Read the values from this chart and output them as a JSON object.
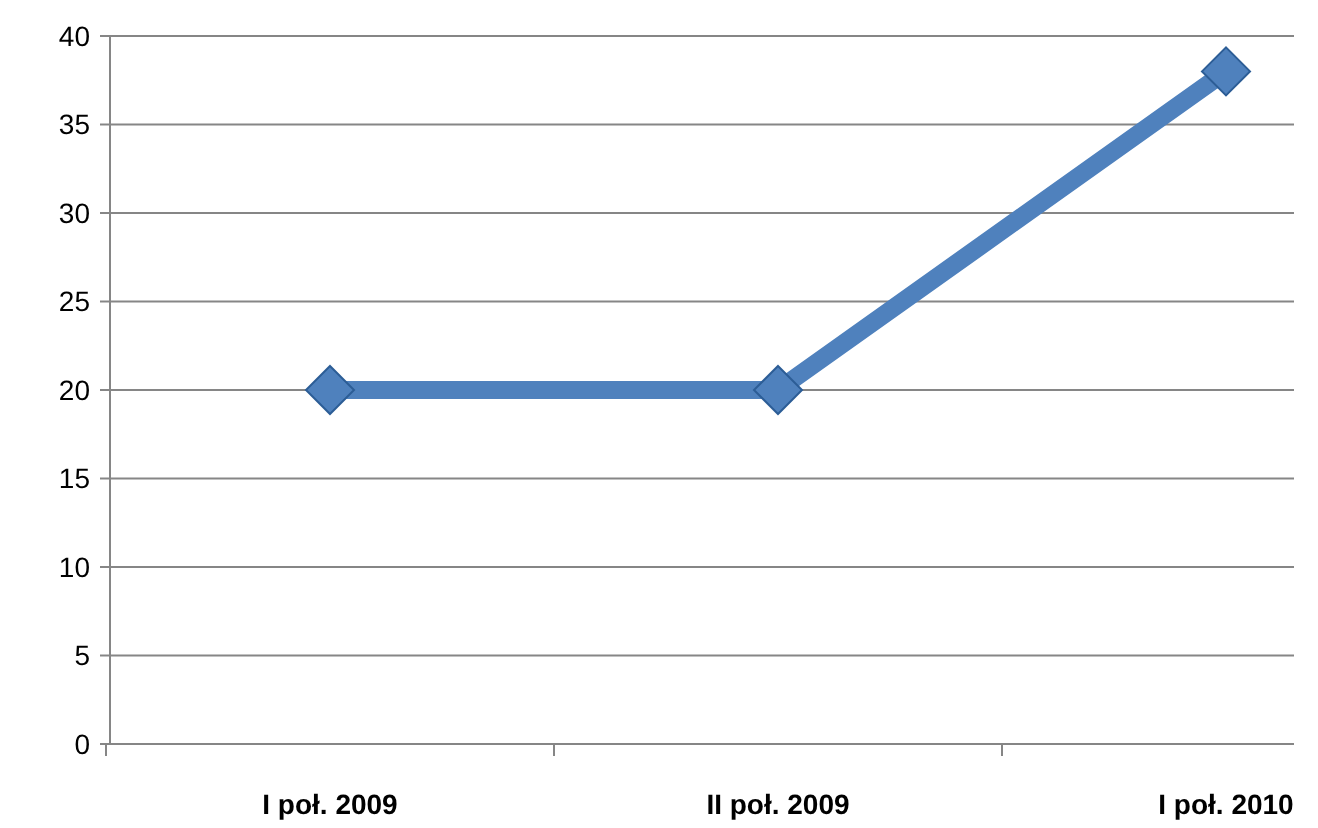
{
  "chart_data": {
    "type": "line",
    "categories": [
      "I poł. 2009",
      "II poł. 2009",
      "I poł. 2010"
    ],
    "series": [
      {
        "color": "#4f81bd",
        "values": [
          20,
          20,
          38
        ]
      }
    ],
    "ylim": [
      0,
      40
    ],
    "yticks": [
      0,
      5,
      10,
      15,
      20,
      25,
      30,
      35,
      40
    ],
    "grid": "y",
    "marker": "diamond",
    "line_style": "solid"
  }
}
